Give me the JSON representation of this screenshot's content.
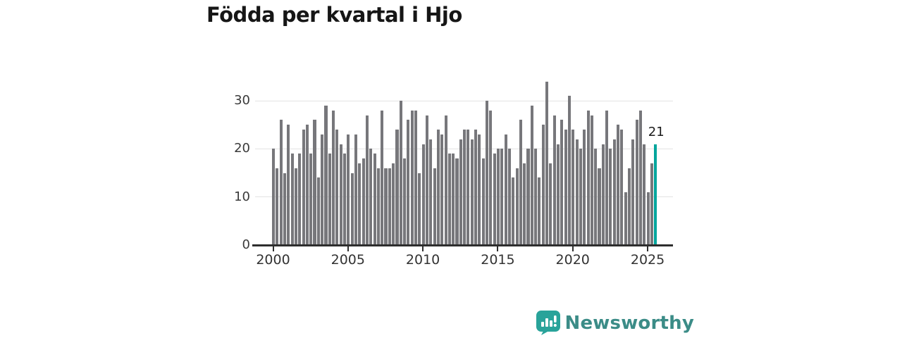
{
  "page": {
    "title": "Födda per kvartal i Hjo"
  },
  "chart_data": {
    "type": "bar",
    "title": "Födda per kvartal i Hjo",
    "x_start_quarter": "2000-Q1",
    "x_end_quarter": "2025-Q3",
    "x_tick_labels": [
      "2000",
      "2005",
      "2010",
      "2015",
      "2020",
      "2025"
    ],
    "y_ticks": [
      0,
      10,
      20,
      30
    ],
    "y_tick_labels": [
      "0",
      "10",
      "20",
      "30"
    ],
    "ylim": [
      0,
      35
    ],
    "grid": "horizontal",
    "values": [
      20,
      16,
      26,
      15,
      25,
      19,
      16,
      19,
      24,
      25,
      19,
      26,
      14,
      23,
      29,
      19,
      28,
      24,
      21,
      19,
      23,
      15,
      23,
      17,
      18,
      27,
      20,
      19,
      16,
      28,
      16,
      16,
      17,
      24,
      30,
      18,
      26,
      28,
      28,
      15,
      21,
      27,
      22,
      16,
      24,
      23,
      27,
      19,
      19,
      18,
      22,
      24,
      24,
      22,
      24,
      23,
      18,
      30,
      28,
      19,
      20,
      20,
      23,
      20,
      14,
      16,
      26,
      17,
      20,
      29,
      20,
      14,
      25,
      34,
      17,
      27,
      21,
      26,
      24,
      31,
      24,
      22,
      20,
      24,
      28,
      27,
      20,
      16,
      21,
      28,
      20,
      22,
      25,
      24,
      11,
      16,
      22,
      26,
      28,
      21,
      11,
      17,
      21
    ],
    "highlight_last_bar": true,
    "last_value_label": "21",
    "colors": {
      "bar": "#77777b",
      "highlight": "#00a59c",
      "gridline": "#e3e3e3",
      "axis": "#2e2e2e",
      "tick_text": "#333333",
      "annotation_text": "#1a1a1a"
    }
  },
  "branding": {
    "wordmark": "Newsworthy",
    "icon": "newsworthy-speech-bubble-chart-icon",
    "colors": {
      "icon": "#29a39a",
      "icon_glyph": "#ffffff",
      "text": "#3b8c87"
    }
  }
}
